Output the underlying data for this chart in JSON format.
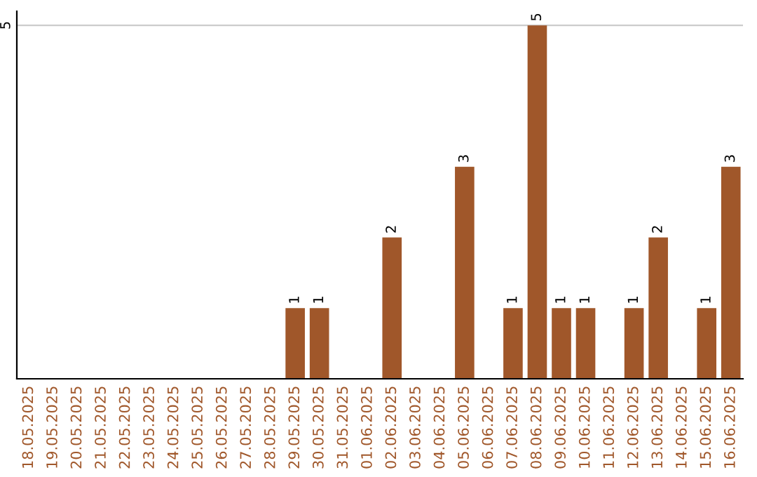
{
  "chart_data": {
    "type": "bar",
    "categories": [
      "18.05.2025",
      "19.05.2025",
      "20.05.2025",
      "21.05.2025",
      "22.05.2025",
      "23.05.2025",
      "24.05.2025",
      "25.05.2025",
      "26.05.2025",
      "27.05.2025",
      "28.05.2025",
      "29.05.2025",
      "30.05.2025",
      "31.05.2025",
      "01.06.2025",
      "02.06.2025",
      "03.06.2025",
      "04.06.2025",
      "05.06.2025",
      "06.06.2025",
      "07.06.2025",
      "08.06.2025",
      "09.06.2025",
      "10.06.2025",
      "11.06.2025",
      "12.06.2025",
      "13.06.2025",
      "14.06.2025",
      "15.06.2025",
      "16.06.2025"
    ],
    "values": [
      0,
      0,
      0,
      0,
      0,
      0,
      0,
      0,
      0,
      0,
      0,
      1,
      1,
      0,
      0,
      2,
      0,
      0,
      3,
      0,
      1,
      5,
      1,
      1,
      0,
      1,
      2,
      0,
      1,
      3
    ],
    "value_labels": [
      null,
      null,
      null,
      null,
      null,
      null,
      null,
      null,
      null,
      null,
      null,
      "1",
      "1",
      null,
      null,
      "2",
      null,
      null,
      "3",
      null,
      "1",
      "5",
      "1",
      "1",
      null,
      "1",
      "2",
      null,
      "1",
      "3"
    ],
    "color": "#a0572a",
    "ylim": [
      0,
      5.2
    ],
    "yticks": [
      5
    ],
    "grid": "y"
  }
}
